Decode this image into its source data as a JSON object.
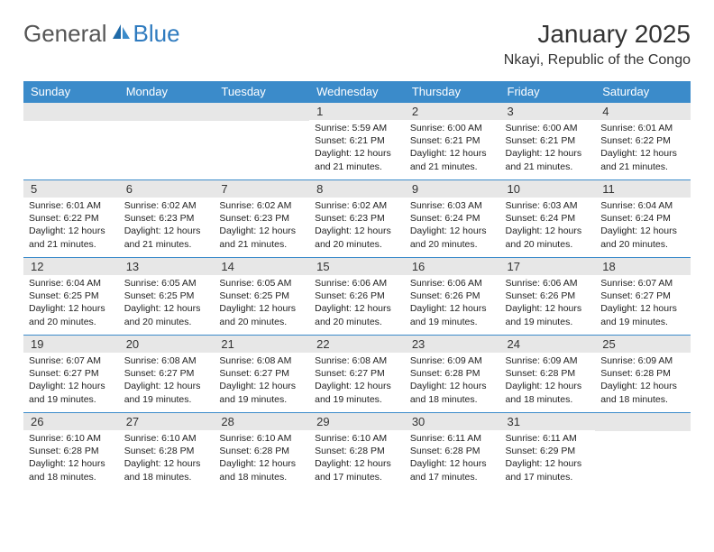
{
  "logo": {
    "gen": "General",
    "blue": "Blue"
  },
  "title": "January 2025",
  "location": "Nkayi, Republic of the Congo",
  "colors": {
    "header_bg": "#3b8bca",
    "header_text": "#ffffff",
    "daynum_bg": "#e7e7e7",
    "border": "#3b8bca",
    "title_color": "#333333",
    "logo_gray": "#555555",
    "logo_blue": "#2f7bbf"
  },
  "weekdays": [
    "Sunday",
    "Monday",
    "Tuesday",
    "Wednesday",
    "Thursday",
    "Friday",
    "Saturday"
  ],
  "weeks": [
    [
      null,
      null,
      null,
      {
        "n": "1",
        "sr": "5:59 AM",
        "ss": "6:21 PM",
        "dl": "12 hours and 21 minutes."
      },
      {
        "n": "2",
        "sr": "6:00 AM",
        "ss": "6:21 PM",
        "dl": "12 hours and 21 minutes."
      },
      {
        "n": "3",
        "sr": "6:00 AM",
        "ss": "6:21 PM",
        "dl": "12 hours and 21 minutes."
      },
      {
        "n": "4",
        "sr": "6:01 AM",
        "ss": "6:22 PM",
        "dl": "12 hours and 21 minutes."
      }
    ],
    [
      {
        "n": "5",
        "sr": "6:01 AM",
        "ss": "6:22 PM",
        "dl": "12 hours and 21 minutes."
      },
      {
        "n": "6",
        "sr": "6:02 AM",
        "ss": "6:23 PM",
        "dl": "12 hours and 21 minutes."
      },
      {
        "n": "7",
        "sr": "6:02 AM",
        "ss": "6:23 PM",
        "dl": "12 hours and 21 minutes."
      },
      {
        "n": "8",
        "sr": "6:02 AM",
        "ss": "6:23 PM",
        "dl": "12 hours and 20 minutes."
      },
      {
        "n": "9",
        "sr": "6:03 AM",
        "ss": "6:24 PM",
        "dl": "12 hours and 20 minutes."
      },
      {
        "n": "10",
        "sr": "6:03 AM",
        "ss": "6:24 PM",
        "dl": "12 hours and 20 minutes."
      },
      {
        "n": "11",
        "sr": "6:04 AM",
        "ss": "6:24 PM",
        "dl": "12 hours and 20 minutes."
      }
    ],
    [
      {
        "n": "12",
        "sr": "6:04 AM",
        "ss": "6:25 PM",
        "dl": "12 hours and 20 minutes."
      },
      {
        "n": "13",
        "sr": "6:05 AM",
        "ss": "6:25 PM",
        "dl": "12 hours and 20 minutes."
      },
      {
        "n": "14",
        "sr": "6:05 AM",
        "ss": "6:25 PM",
        "dl": "12 hours and 20 minutes."
      },
      {
        "n": "15",
        "sr": "6:06 AM",
        "ss": "6:26 PM",
        "dl": "12 hours and 20 minutes."
      },
      {
        "n": "16",
        "sr": "6:06 AM",
        "ss": "6:26 PM",
        "dl": "12 hours and 19 minutes."
      },
      {
        "n": "17",
        "sr": "6:06 AM",
        "ss": "6:26 PM",
        "dl": "12 hours and 19 minutes."
      },
      {
        "n": "18",
        "sr": "6:07 AM",
        "ss": "6:27 PM",
        "dl": "12 hours and 19 minutes."
      }
    ],
    [
      {
        "n": "19",
        "sr": "6:07 AM",
        "ss": "6:27 PM",
        "dl": "12 hours and 19 minutes."
      },
      {
        "n": "20",
        "sr": "6:08 AM",
        "ss": "6:27 PM",
        "dl": "12 hours and 19 minutes."
      },
      {
        "n": "21",
        "sr": "6:08 AM",
        "ss": "6:27 PM",
        "dl": "12 hours and 19 minutes."
      },
      {
        "n": "22",
        "sr": "6:08 AM",
        "ss": "6:27 PM",
        "dl": "12 hours and 19 minutes."
      },
      {
        "n": "23",
        "sr": "6:09 AM",
        "ss": "6:28 PM",
        "dl": "12 hours and 18 minutes."
      },
      {
        "n": "24",
        "sr": "6:09 AM",
        "ss": "6:28 PM",
        "dl": "12 hours and 18 minutes."
      },
      {
        "n": "25",
        "sr": "6:09 AM",
        "ss": "6:28 PM",
        "dl": "12 hours and 18 minutes."
      }
    ],
    [
      {
        "n": "26",
        "sr": "6:10 AM",
        "ss": "6:28 PM",
        "dl": "12 hours and 18 minutes."
      },
      {
        "n": "27",
        "sr": "6:10 AM",
        "ss": "6:28 PM",
        "dl": "12 hours and 18 minutes."
      },
      {
        "n": "28",
        "sr": "6:10 AM",
        "ss": "6:28 PM",
        "dl": "12 hours and 18 minutes."
      },
      {
        "n": "29",
        "sr": "6:10 AM",
        "ss": "6:28 PM",
        "dl": "12 hours and 17 minutes."
      },
      {
        "n": "30",
        "sr": "6:11 AM",
        "ss": "6:28 PM",
        "dl": "12 hours and 17 minutes."
      },
      {
        "n": "31",
        "sr": "6:11 AM",
        "ss": "6:29 PM",
        "dl": "12 hours and 17 minutes."
      },
      null
    ]
  ],
  "labels": {
    "sunrise": "Sunrise:",
    "sunset": "Sunset:",
    "daylight": "Daylight:"
  }
}
